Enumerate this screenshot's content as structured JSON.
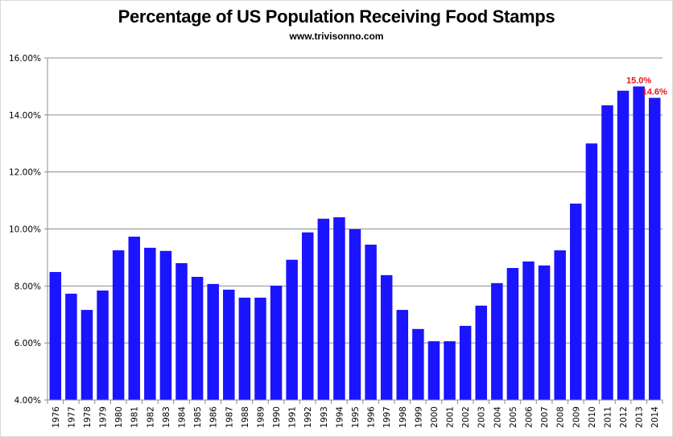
{
  "chart_data": {
    "type": "bar",
    "title": "Percentage of US Population Receiving Food Stamps",
    "subtitle": "www.trivisonno.com",
    "xlabel": "",
    "ylabel": "",
    "ylim": [
      4,
      16
    ],
    "yticks": [
      4,
      6,
      8,
      10,
      12,
      14,
      16
    ],
    "ytick_labels": [
      "4.00%",
      "6.00%",
      "8.00%",
      "10.00%",
      "12.00%",
      "14.00%",
      "16.00%"
    ],
    "grid": true,
    "bar_color": "#1a14ff",
    "label_color": "#e8161b",
    "categories": [
      "1976",
      "1977",
      "1978",
      "1979",
      "1980",
      "1981",
      "1982",
      "1983",
      "1984",
      "1985",
      "1986",
      "1987",
      "1988",
      "1989",
      "1990",
      "1991",
      "1992",
      "1993",
      "1994",
      "1995",
      "1996",
      "1997",
      "1998",
      "1999",
      "2000",
      "2001",
      "2002",
      "2003",
      "2004",
      "2005",
      "2006",
      "2007",
      "2008",
      "2009",
      "2010",
      "2011",
      "2012",
      "2013",
      "2014"
    ],
    "values": [
      8.49,
      7.73,
      7.16,
      7.84,
      9.25,
      9.73,
      9.34,
      9.23,
      8.8,
      8.32,
      8.07,
      7.87,
      7.59,
      7.59,
      8.01,
      8.92,
      9.88,
      10.36,
      10.41,
      9.99,
      9.45,
      8.38,
      7.16,
      6.49,
      6.06,
      6.06,
      6.6,
      7.31,
      8.1,
      8.63,
      8.86,
      8.72,
      9.25,
      10.89,
      13.0,
      14.34,
      14.85,
      15.0,
      14.6
    ],
    "data_labels": [
      {
        "category": "2013",
        "text": "15.0%"
      },
      {
        "category": "2014",
        "text": "14.6%"
      }
    ]
  }
}
